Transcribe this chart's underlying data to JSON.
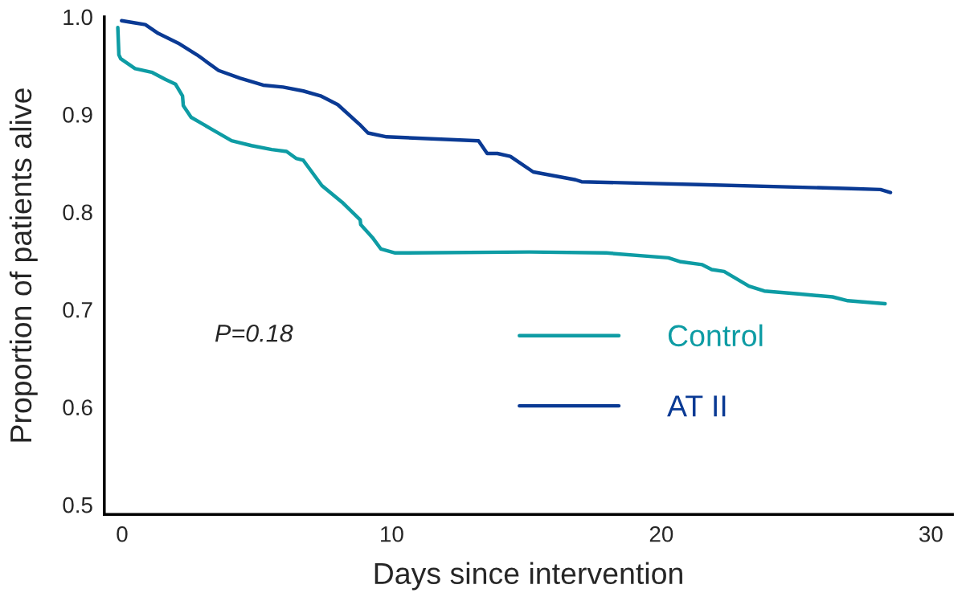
{
  "chart_data": {
    "type": "line",
    "xlabel": "Days since intervention",
    "ylabel": "Proportion of patients alive",
    "annotations": [
      "P=0.18"
    ],
    "xlim": [
      -0.66,
      30.8
    ],
    "xticks": [
      0,
      10,
      20,
      30
    ],
    "ylim": [
      0.49,
      1.0
    ],
    "yticks": [
      {
        "value": 0.5,
        "label": "0.5"
      },
      {
        "value": 0.6,
        "label": "0.6"
      },
      {
        "value": 0.7,
        "label": "0.7"
      },
      {
        "value": 0.8,
        "label": "0.8"
      },
      {
        "value": 0.9,
        "label": "0.9"
      },
      {
        "value": 1.0,
        "label": "1.0"
      }
    ],
    "grid": false,
    "legend": "lower right",
    "line_style": "solid",
    "series": [
      {
        "name": "Control",
        "color": "#0e9ca4",
        "x": [
          -0.16,
          -0.12,
          -0.05,
          0.48,
          1.12,
          1.6,
          1.98,
          2.24,
          2.27,
          2.56,
          3.31,
          4.06,
          4.8,
          5.55,
          6.1,
          6.45,
          6.72,
          7.41,
          8.16,
          8.83,
          8.85,
          9.28,
          9.6,
          10.13,
          15.1,
          17.96,
          20.26,
          20.72,
          21.52,
          21.87,
          22.33,
          23.25,
          23.82,
          25.08,
          26.35,
          26.92,
          28.3
        ],
        "values": [
          0.989,
          0.961,
          0.957,
          0.947,
          0.943,
          0.936,
          0.931,
          0.919,
          0.909,
          0.897,
          0.885,
          0.873,
          0.868,
          0.864,
          0.862,
          0.855,
          0.853,
          0.827,
          0.81,
          0.792,
          0.787,
          0.774,
          0.762,
          0.758,
          0.759,
          0.758,
          0.753,
          0.749,
          0.746,
          0.741,
          0.739,
          0.724,
          0.719,
          0.716,
          0.713,
          0.709,
          0.706
        ]
      },
      {
        "name": "AT II",
        "color": "#0a3a94",
        "x": [
          -0.02,
          0.43,
          0.86,
          1.34,
          2.08,
          2.78,
          3.58,
          4.38,
          5.23,
          5.97,
          6.72,
          7.36,
          8.0,
          8.8,
          9.12,
          9.81,
          13.22,
          13.54,
          13.92,
          14.4,
          15.25,
          16.82,
          17.04,
          21.41,
          27.04,
          28.13,
          28.5
        ],
        "values": [
          0.996,
          0.994,
          0.992,
          0.983,
          0.973,
          0.961,
          0.945,
          0.937,
          0.93,
          0.928,
          0.924,
          0.919,
          0.91,
          0.89,
          0.881,
          0.877,
          0.873,
          0.86,
          0.86,
          0.857,
          0.841,
          0.833,
          0.831,
          0.828,
          0.824,
          0.823,
          0.82
        ]
      }
    ]
  }
}
